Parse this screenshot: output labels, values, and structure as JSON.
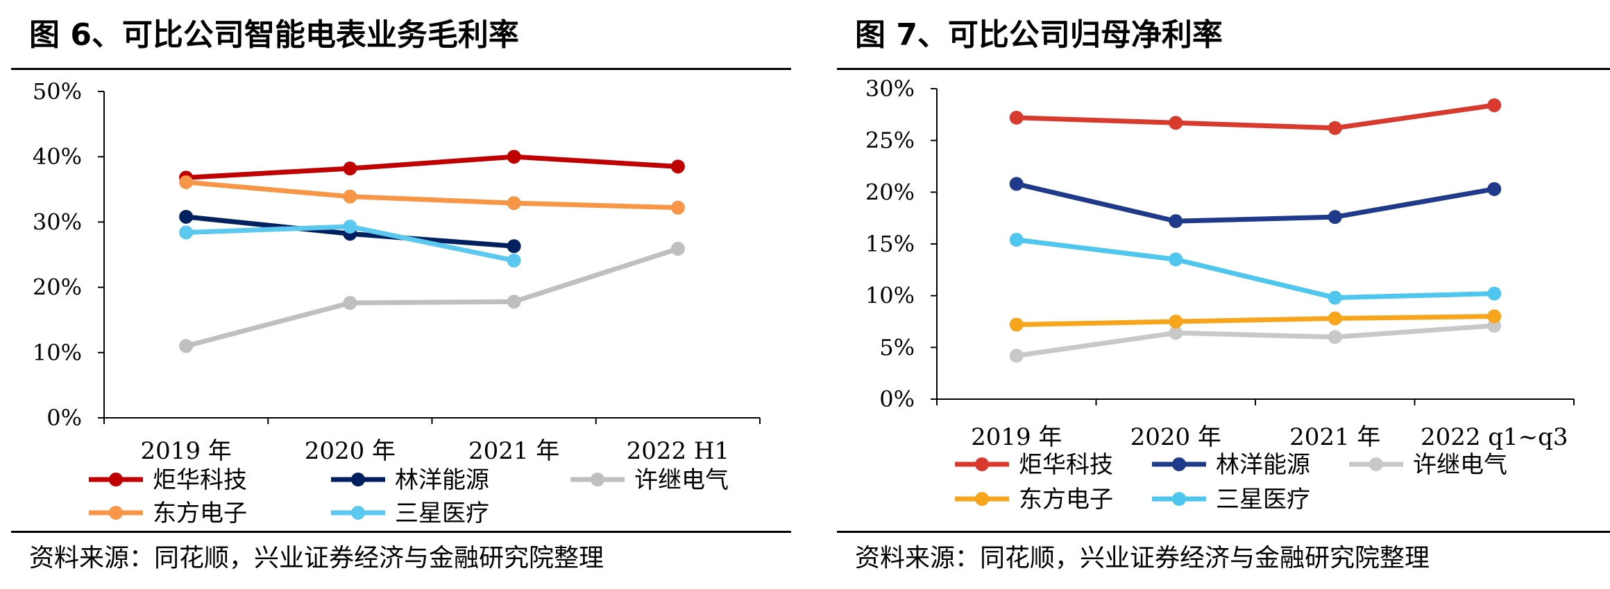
{
  "figures": [
    {
      "title": "图 6、可比公司智能电表业务毛利率",
      "source": "资料来源：同花顺，兴业证券经济与金融研究院整理"
    },
    {
      "title": "图 7、可比公司归母净利率",
      "source": "资料来源：同花顺，兴业证券经济与金融研究院整理"
    }
  ],
  "chart_data": [
    {
      "type": "line",
      "title": "",
      "xlabel": "",
      "ylabel": "",
      "categories": [
        "2019 年",
        "2020 年",
        "2021 年",
        "2022 H1"
      ],
      "y_ticks": [
        "0%",
        "10%",
        "20%",
        "30%",
        "40%",
        "50%"
      ],
      "ylim": [
        0,
        50
      ],
      "grid": false,
      "legend_position": "bottom",
      "series": [
        {
          "name": "炬华科技",
          "color": "#c00000",
          "values": [
            36.8,
            38.2,
            40.0,
            38.5
          ]
        },
        {
          "name": "林洋能源",
          "color": "#002060",
          "values": [
            30.8,
            28.2,
            26.3,
            null
          ]
        },
        {
          "name": "许继电气",
          "color": "#bfbfbf",
          "values": [
            11.0,
            17.6,
            17.8,
            25.9
          ]
        },
        {
          "name": "东方电子",
          "color": "#f79646",
          "values": [
            36.1,
            33.9,
            32.9,
            32.2
          ]
        },
        {
          "name": "三星医疗",
          "color": "#5bc8f0",
          "values": [
            28.4,
            29.3,
            24.1,
            null
          ]
        }
      ]
    },
    {
      "type": "line",
      "title": "",
      "xlabel": "",
      "ylabel": "",
      "categories": [
        "2019 年",
        "2020 年",
        "2021 年",
        "2022 q1~q3"
      ],
      "y_ticks": [
        "0%",
        "5%",
        "10%",
        "15%",
        "20%",
        "25%",
        "30%"
      ],
      "ylim": [
        0,
        30
      ],
      "grid": false,
      "legend_position": "bottom",
      "series": [
        {
          "name": "炬华科技",
          "color": "#d83a2e",
          "values": [
            27.2,
            26.7,
            26.2,
            28.4
          ]
        },
        {
          "name": "林洋能源",
          "color": "#1f3a8a",
          "values": [
            20.8,
            17.2,
            17.6,
            20.3
          ]
        },
        {
          "name": "许继电气",
          "color": "#c8c8c8",
          "values": [
            4.2,
            6.4,
            6.0,
            7.1
          ]
        },
        {
          "name": "东方电子",
          "color": "#f7a51c",
          "values": [
            7.2,
            7.5,
            7.8,
            8.0
          ]
        },
        {
          "name": "三星医疗",
          "color": "#4fc6ee",
          "values": [
            15.4,
            13.5,
            9.8,
            10.2
          ]
        }
      ]
    }
  ]
}
